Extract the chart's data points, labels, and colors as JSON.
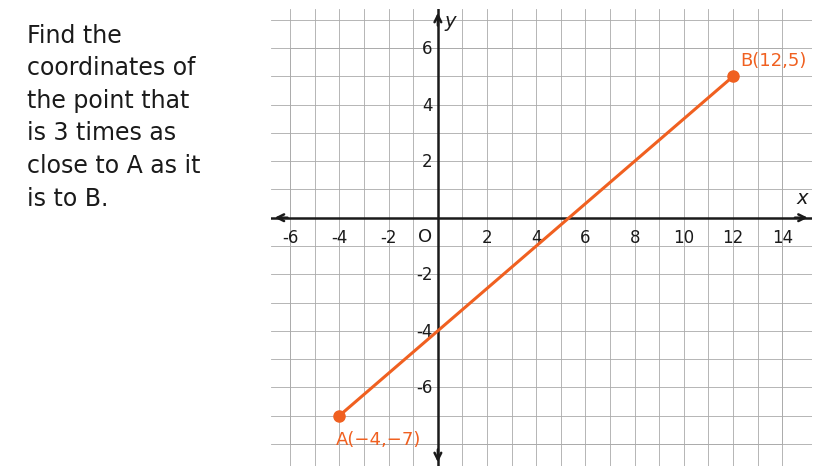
{
  "title_text": "Find the\ncoordinates of\nthe point that\nis 3 times as\nclose to A as it\nis to B.",
  "point_A": [
    -4,
    -7
  ],
  "point_B": [
    12,
    5
  ],
  "point_color": "#f06020",
  "line_color": "#f06020",
  "label_A": "A(−4,−7)",
  "label_B": "B(12,5)",
  "xlim": [
    -6.8,
    15.2
  ],
  "ylim": [
    -8.8,
    7.4
  ],
  "xgrid": [
    -6,
    -5,
    -4,
    -3,
    -2,
    -1,
    0,
    1,
    2,
    3,
    4,
    5,
    6,
    7,
    8,
    9,
    10,
    11,
    12,
    13,
    14
  ],
  "ygrid": [
    -8,
    -7,
    -6,
    -5,
    -4,
    -3,
    -2,
    -1,
    0,
    1,
    2,
    3,
    4,
    5,
    6,
    7
  ],
  "xtick_labels": [
    -6,
    -4,
    -2,
    2,
    4,
    6,
    8,
    10,
    12,
    14
  ],
  "ytick_labels": [
    -6,
    -4,
    -2,
    2,
    4,
    6
  ],
  "xlabel": "x",
  "ylabel": "y",
  "origin_label": "O",
  "grid_color": "#aaaaaa",
  "background_color": "#ffffff",
  "text_color": "#1a1a1a",
  "axis_color": "#1a1a1a",
  "point_size": 8,
  "line_width": 2.2,
  "title_fontsize": 17,
  "label_fontsize": 13,
  "tick_fontsize": 12,
  "axis_label_fontsize": 14
}
